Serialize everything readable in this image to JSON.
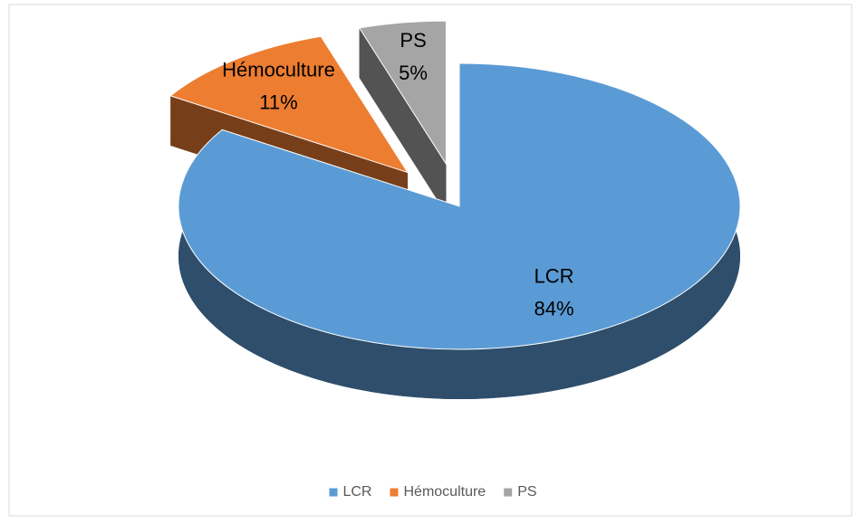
{
  "chart_data": {
    "type": "pie",
    "categories": [
      "LCR",
      "Hémoculture",
      "PS"
    ],
    "values": [
      84,
      11,
      5
    ],
    "value_labels": [
      "84%",
      "11%",
      "5%"
    ],
    "colors": [
      "#5b9bd5",
      "#ed7d31",
      "#a5a5a5"
    ],
    "legend": "bottom"
  }
}
